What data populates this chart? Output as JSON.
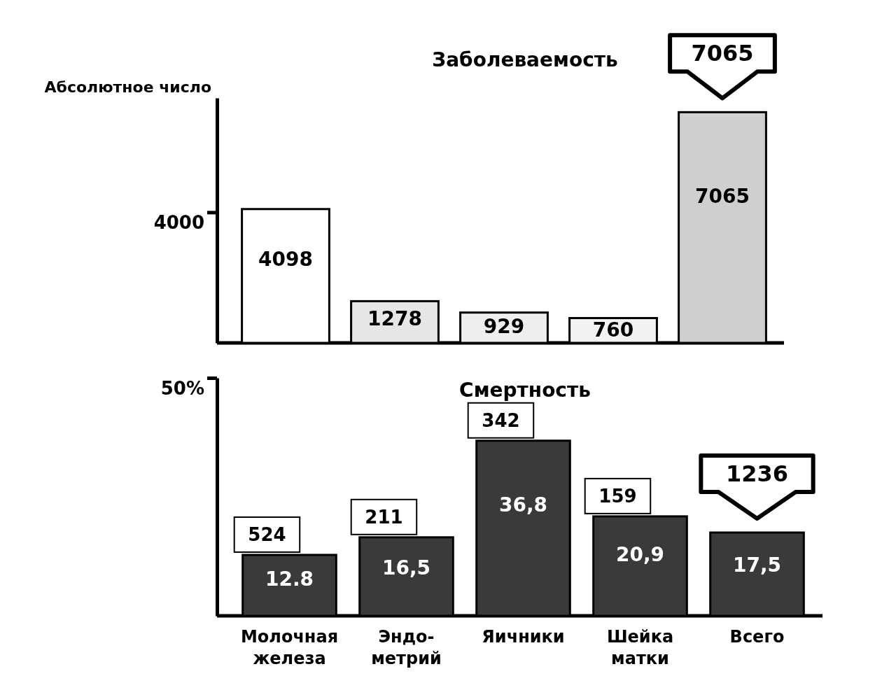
{
  "chart_data": [
    {
      "type": "bar",
      "title": "Заболеваемость",
      "ylabel": "Абсолютное число",
      "categories": [
        null,
        null,
        null,
        null,
        null
      ],
      "values": [
        4098,
        1278,
        929,
        760,
        7065
      ],
      "colors": [
        "#ffffff",
        "#e6e6e6",
        "#eeeeee",
        "#f2f2f2",
        "#cfcfcf"
      ],
      "ylim": [
        0,
        7500
      ],
      "yticks": [
        4000
      ],
      "data_labels": true,
      "annotations": [
        "7065"
      ]
    },
    {
      "type": "bar",
      "title": "Смертность",
      "categories": [
        "Молочная\nжелеза",
        "Эндо-\nметрий",
        "Яичники",
        "Шейка\nматки",
        "Всего"
      ],
      "values": [
        12.8,
        16.5,
        36.8,
        20.9,
        17.5
      ],
      "value_labels": [
        "12.8",
        "16,5",
        "36,8",
        "20,9",
        "17,5"
      ],
      "color": "#3a3a3a",
      "ylim": [
        0,
        50
      ],
      "yticks": [
        {
          "value": 50,
          "label": "50%"
        }
      ],
      "annotations": [
        "524",
        "211",
        "342",
        "159",
        "1236"
      ]
    }
  ]
}
